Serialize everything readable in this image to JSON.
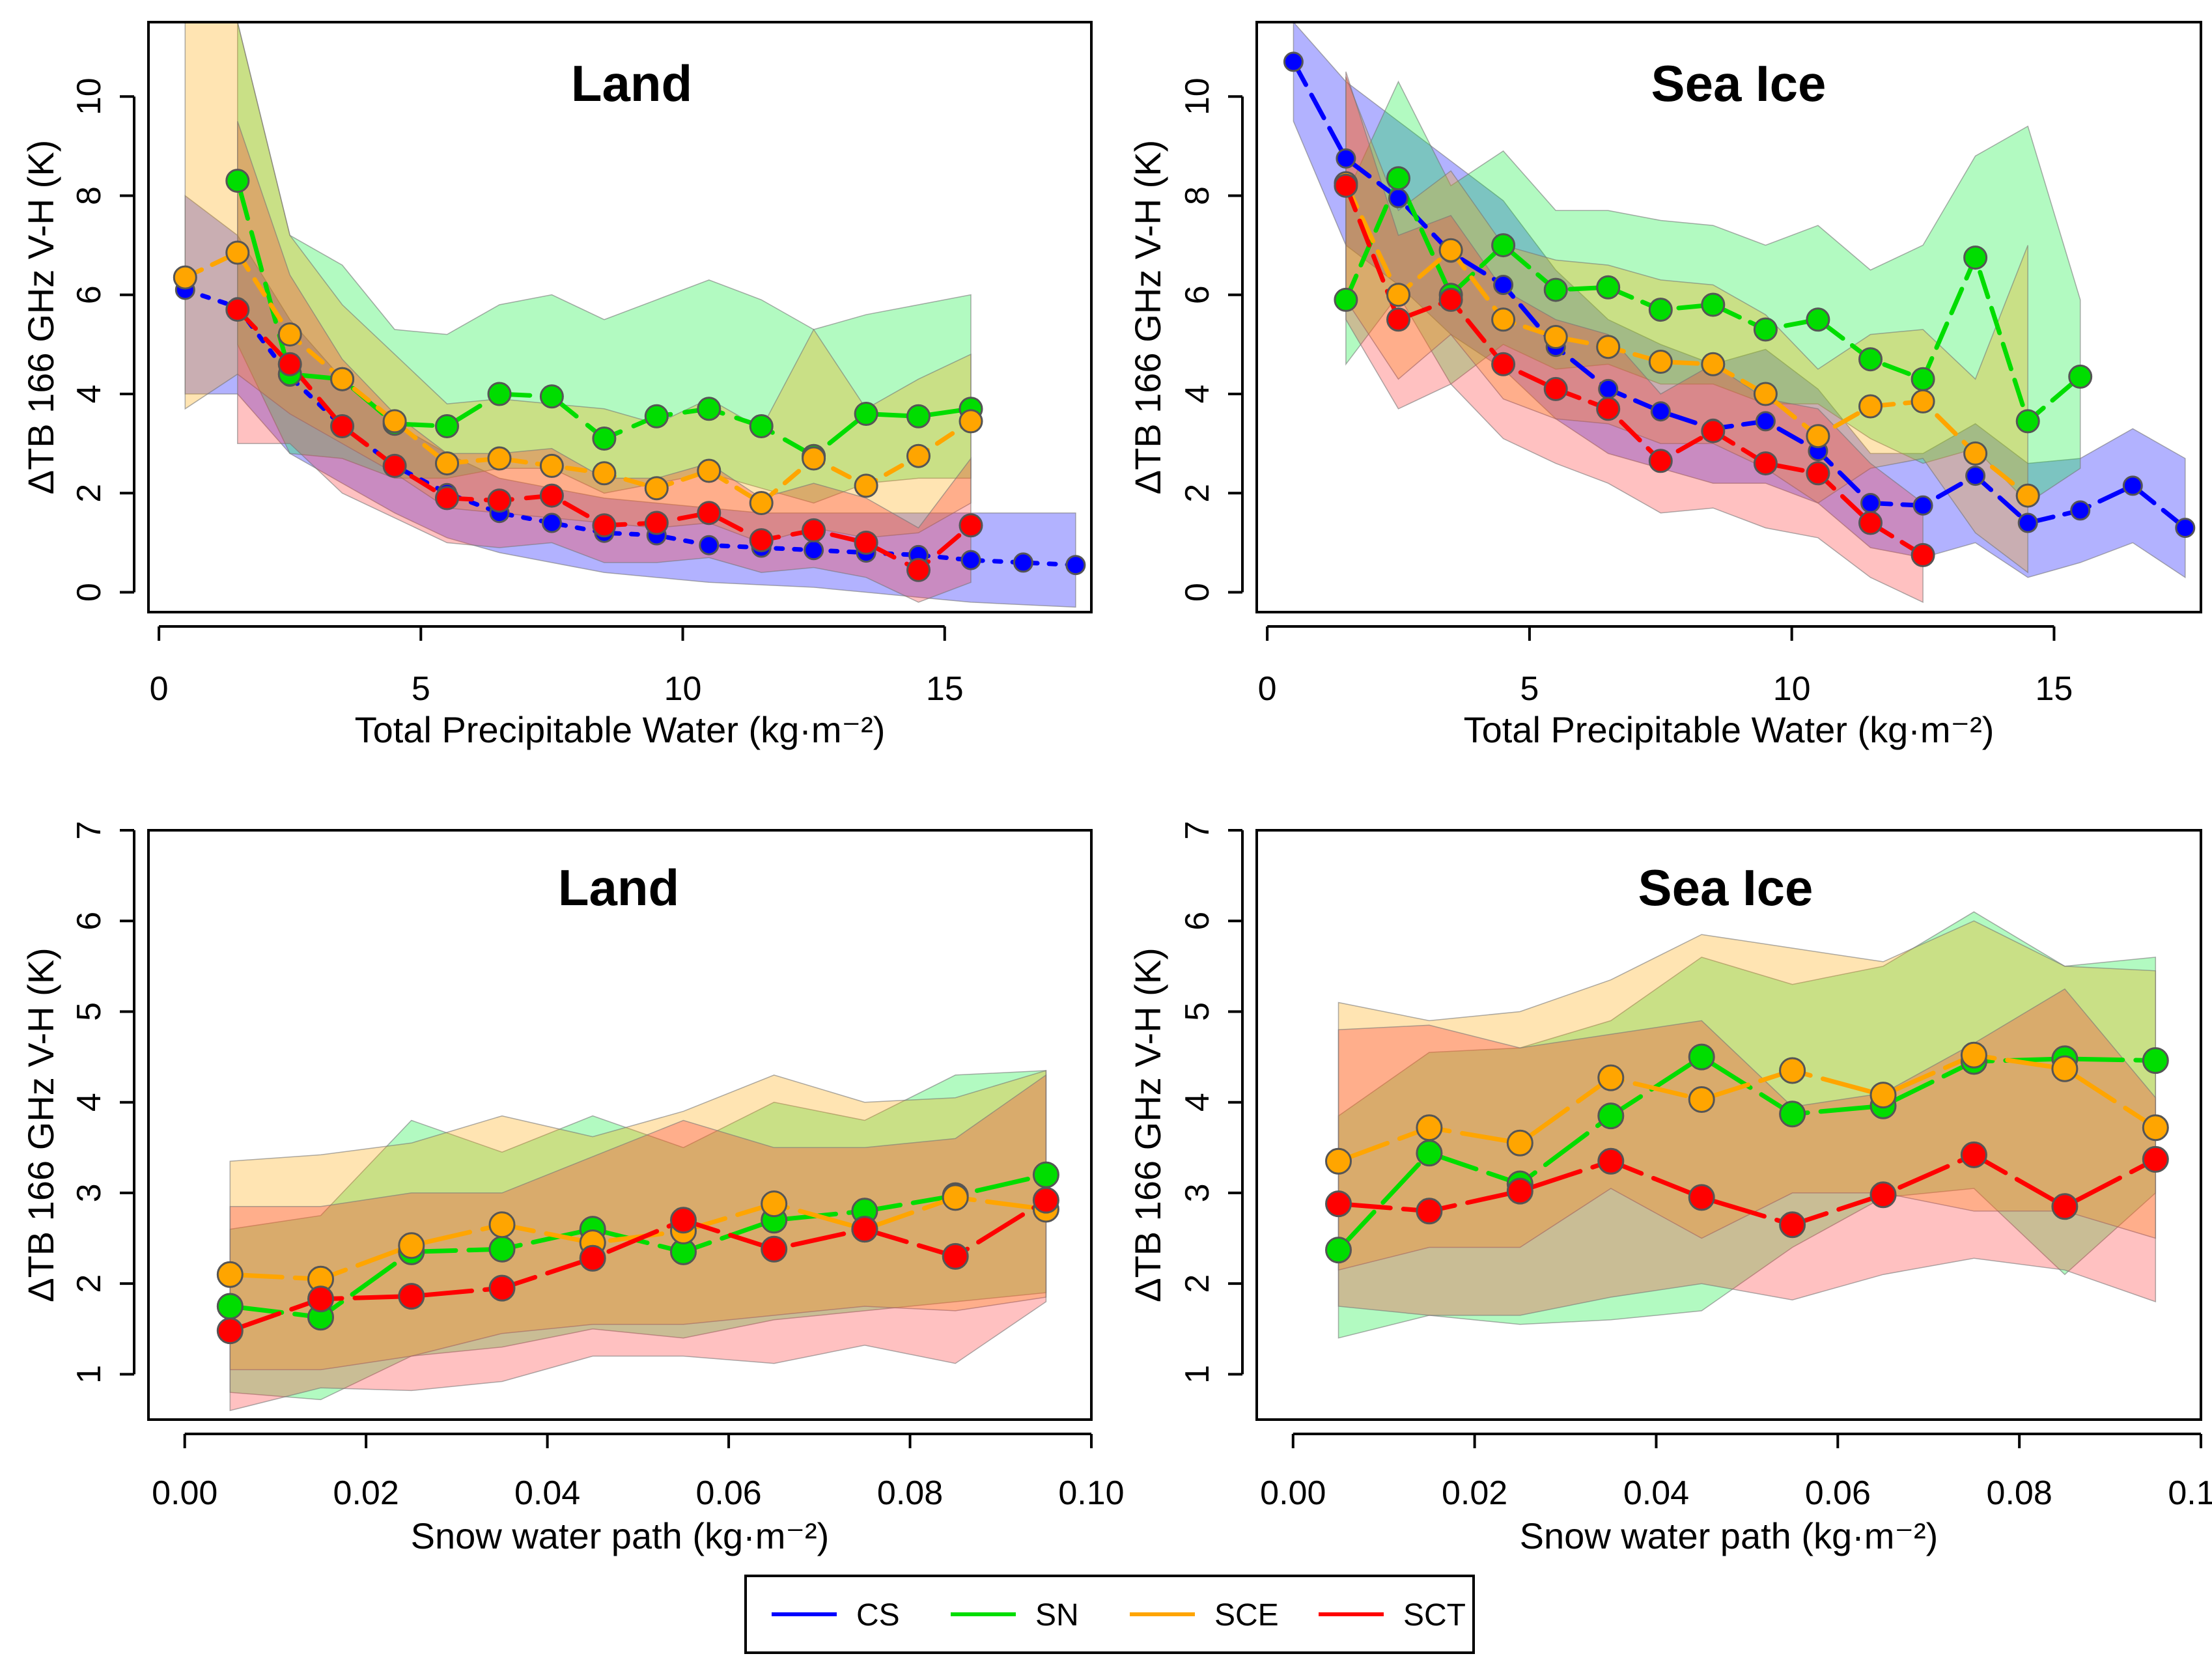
{
  "legend": [
    {
      "key": "CS",
      "label": "CS",
      "color": "#0000ff"
    },
    {
      "key": "SN",
      "label": "SN",
      "color": "#00dd00"
    },
    {
      "key": "SCE",
      "label": "SCE",
      "color": "#ffa500"
    },
    {
      "key": "SCT",
      "label": "SCT",
      "color": "#ff0000"
    }
  ],
  "colors": {
    "CS": "#0000ff",
    "SN": "#00dd00",
    "SCE": "#ffa500",
    "SCT": "#ff0000",
    "CS_fill": "#0000ff",
    "SN_fill": "#00ee33",
    "SCE_fill": "#ffa500",
    "SCT_fill": "#ff3333"
  },
  "chart_data": [
    {
      "id": "tpw-land",
      "type": "line",
      "title": "Land",
      "xlabel": "Total Precipitable Water (kg·m⁻²)",
      "ylabel": "ΔTB 166 GHz V-H (K)",
      "xlim": [
        -0.2,
        17.8
      ],
      "ylim": [
        -0.4,
        11.5
      ],
      "xticks": [
        0,
        5,
        10,
        15
      ],
      "xtick_labels": [
        "0",
        "5",
        "10",
        "15"
      ],
      "yticks": [
        0,
        2,
        4,
        6,
        8,
        10
      ],
      "ytick_labels": [
        "0",
        "2",
        "4",
        "6",
        "8",
        "10"
      ],
      "series": [
        {
          "name": "CS",
          "x": [
            0.5,
            1.5,
            2.5,
            3.5,
            4.5,
            5.5,
            6.5,
            7.5,
            8.5,
            9.5,
            10.5,
            11.5,
            12.5,
            13.5,
            14.5,
            15.5,
            16.5,
            17.5
          ],
          "y": [
            6.1,
            5.75,
            4.35,
            3.35,
            2.55,
            2.0,
            1.6,
            1.4,
            1.2,
            1.15,
            0.95,
            0.9,
            0.85,
            0.8,
            0.75,
            0.65,
            0.6,
            0.55
          ],
          "lower": [
            4.0,
            4.0,
            2.8,
            2.2,
            1.6,
            1.1,
            0.8,
            0.6,
            0.4,
            0.3,
            0.2,
            0.15,
            0.1,
            0.0,
            -0.1,
            -0.2,
            -0.25,
            -0.3
          ],
          "upper": [
            8.0,
            7.2,
            5.5,
            4.3,
            3.4,
            2.8,
            2.3,
            2.1,
            1.9,
            1.8,
            1.7,
            1.6,
            1.6,
            1.6,
            1.6,
            1.6,
            1.6,
            1.6
          ]
        },
        {
          "name": "SN",
          "x": [
            1.5,
            2.5,
            3.5,
            4.5,
            5.5,
            6.5,
            7.5,
            8.5,
            9.5,
            10.5,
            11.5,
            12.5,
            13.5,
            14.5,
            15.5
          ],
          "y": [
            8.3,
            4.4,
            4.3,
            3.4,
            3.35,
            4.0,
            3.95,
            3.1,
            3.55,
            3.7,
            3.35,
            2.75,
            3.6,
            3.55,
            3.7
          ],
          "lower": [
            5.0,
            2.8,
            2.7,
            2.3,
            2.3,
            2.5,
            2.5,
            2.0,
            2.2,
            2.4,
            2.1,
            1.8,
            2.2,
            2.3,
            2.3
          ],
          "upper": [
            11.5,
            7.2,
            6.6,
            5.3,
            5.2,
            5.8,
            6.0,
            5.5,
            5.9,
            6.3,
            5.9,
            5.3,
            5.6,
            5.8,
            6.0
          ]
        },
        {
          "name": "SCE",
          "x": [
            0.5,
            1.5,
            2.5,
            3.5,
            4.5,
            5.5,
            6.5,
            7.5,
            8.5,
            9.5,
            10.5,
            11.5,
            12.5,
            13.5,
            14.5,
            15.5
          ],
          "y": [
            6.35,
            6.85,
            5.2,
            4.3,
            3.45,
            2.6,
            2.7,
            2.55,
            2.4,
            2.1,
            2.45,
            1.8,
            2.7,
            2.15,
            2.75,
            3.45
          ],
          "lower": [
            3.7,
            4.4,
            3.6,
            3.0,
            2.4,
            1.7,
            1.6,
            1.5,
            1.4,
            1.3,
            1.4,
            1.0,
            1.3,
            1.1,
            1.2,
            1.8
          ],
          "upper": [
            11.5,
            11.5,
            7.2,
            5.8,
            4.8,
            3.8,
            3.9,
            3.8,
            3.7,
            3.4,
            3.9,
            3.3,
            5.3,
            3.7,
            4.3,
            4.8
          ]
        },
        {
          "name": "SCT",
          "x": [
            1.5,
            2.5,
            3.5,
            4.5,
            5.5,
            6.5,
            7.5,
            8.5,
            9.5,
            10.5,
            11.5,
            12.5,
            13.5,
            14.5,
            15.5
          ],
          "y": [
            5.7,
            4.6,
            3.35,
            2.55,
            1.9,
            1.85,
            1.95,
            1.35,
            1.4,
            1.6,
            1.05,
            1.25,
            1.0,
            0.45,
            1.35
          ],
          "lower": [
            3.0,
            3.0,
            2.0,
            1.5,
            1.0,
            0.9,
            1.0,
            0.6,
            0.6,
            0.7,
            0.4,
            0.5,
            0.3,
            -0.2,
            0.2
          ],
          "upper": [
            9.5,
            6.4,
            4.7,
            3.6,
            2.8,
            2.8,
            2.9,
            2.3,
            2.3,
            2.6,
            1.9,
            2.2,
            1.9,
            1.3,
            2.7
          ]
        }
      ]
    },
    {
      "id": "tpw-seaice",
      "type": "line",
      "title": "Sea Ice",
      "xlabel": "Total Precipitable Water (kg·m⁻²)",
      "ylabel": "ΔTB 166 GHz V-H (K)",
      "xlim": [
        -0.2,
        17.8
      ],
      "ylim": [
        -0.4,
        11.5
      ],
      "xticks": [
        0,
        5,
        10,
        15
      ],
      "xtick_labels": [
        "0",
        "5",
        "10",
        "15"
      ],
      "yticks": [
        0,
        2,
        4,
        6,
        8,
        10
      ],
      "ytick_labels": [
        "0",
        "2",
        "4",
        "6",
        "8",
        "10"
      ],
      "series": [
        {
          "name": "CS",
          "x": [
            0.5,
            1.5,
            2.5,
            3.5,
            4.5,
            5.5,
            6.5,
            7.5,
            8.5,
            9.5,
            10.5,
            11.5,
            12.5,
            13.5,
            14.5,
            15.5,
            16.5,
            17.5
          ],
          "y": [
            10.7,
            8.75,
            7.95,
            6.85,
            6.2,
            4.95,
            4.1,
            3.65,
            3.3,
            3.45,
            2.85,
            1.8,
            1.75,
            2.35,
            1.4,
            1.65,
            2.15,
            1.3
          ],
          "lower": [
            9.5,
            7.0,
            6.2,
            5.2,
            4.5,
            3.5,
            2.8,
            2.5,
            2.2,
            2.2,
            1.8,
            0.9,
            0.7,
            1.0,
            0.3,
            0.6,
            1.0,
            0.3
          ],
          "upper": [
            11.5,
            10.3,
            9.5,
            8.7,
            7.9,
            6.5,
            5.5,
            5.0,
            4.6,
            4.9,
            4.1,
            2.8,
            2.8,
            3.4,
            2.6,
            2.7,
            3.3,
            2.7
          ]
        },
        {
          "name": "SN",
          "x": [
            1.5,
            2.5,
            3.5,
            4.5,
            5.5,
            6.5,
            7.5,
            8.5,
            9.5,
            10.5,
            11.5,
            12.5,
            13.5,
            14.5,
            15.5
          ],
          "y": [
            5.9,
            8.35,
            6.0,
            7.0,
            6.1,
            6.15,
            5.7,
            5.8,
            5.3,
            5.5,
            4.7,
            4.3,
            6.75,
            3.45,
            4.35
          ],
          "lower": [
            4.6,
            6.0,
            4.2,
            5.0,
            4.5,
            4.6,
            4.2,
            4.2,
            3.8,
            3.8,
            3.1,
            2.6,
            2.9,
            1.8,
            2.5
          ],
          "upper": [
            8.0,
            10.3,
            8.2,
            8.9,
            7.7,
            7.7,
            7.5,
            7.4,
            7.0,
            7.4,
            6.5,
            7.0,
            8.8,
            9.4,
            5.9
          ]
        },
        {
          "name": "SCE",
          "x": [
            1.5,
            2.5,
            3.5,
            4.5,
            5.5,
            6.5,
            7.5,
            8.5,
            9.5,
            10.5,
            11.5,
            12.5,
            13.5,
            14.5
          ],
          "y": [
            8.25,
            6.0,
            6.9,
            5.5,
            5.15,
            4.95,
            4.65,
            4.6,
            4.0,
            3.15,
            3.75,
            3.85,
            2.8,
            1.95
          ],
          "lower": [
            5.9,
            4.3,
            5.2,
            3.9,
            3.5,
            3.4,
            3.0,
            3.0,
            2.5,
            1.8,
            2.5,
            2.7,
            1.2,
            0.4
          ],
          "upper": [
            10.4,
            7.7,
            8.5,
            7.0,
            6.7,
            6.6,
            6.3,
            6.2,
            5.6,
            4.5,
            5.2,
            5.3,
            4.3,
            7.0
          ]
        },
        {
          "name": "SCT",
          "x": [
            1.5,
            2.5,
            3.5,
            4.5,
            5.5,
            6.5,
            7.5,
            8.5,
            9.5,
            10.5,
            11.5,
            12.5
          ],
          "y": [
            8.2,
            5.5,
            5.9,
            4.6,
            4.1,
            3.7,
            2.65,
            3.25,
            2.6,
            2.4,
            1.4,
            0.75
          ],
          "lower": [
            5.5,
            3.7,
            4.2,
            3.1,
            2.6,
            2.2,
            1.6,
            1.7,
            1.3,
            1.1,
            0.3,
            -0.2
          ],
          "upper": [
            10.5,
            7.2,
            7.6,
            6.1,
            5.5,
            5.2,
            4.0,
            4.6,
            3.9,
            3.7,
            2.6,
            1.8
          ]
        }
      ]
    },
    {
      "id": "swp-land",
      "type": "line",
      "title": "Land",
      "xlabel": "Snow water path (kg·m⁻²)",
      "ylabel": "ΔTB 166 GHz V-H (K)",
      "xlim": [
        -0.004,
        0.1
      ],
      "ylim": [
        0.5,
        7.0
      ],
      "xticks": [
        0.0,
        0.02,
        0.04,
        0.06,
        0.08,
        0.1
      ],
      "xtick_labels": [
        "0.00",
        "0.02",
        "0.04",
        "0.06",
        "0.08",
        "0.10"
      ],
      "yticks": [
        1,
        2,
        3,
        4,
        5,
        6,
        7
      ],
      "ytick_labels": [
        "1",
        "2",
        "3",
        "4",
        "5",
        "6",
        "7"
      ],
      "series": [
        {
          "name": "SN",
          "x": [
            0.005,
            0.015,
            0.025,
            0.035,
            0.045,
            0.055,
            0.065,
            0.075,
            0.085,
            0.095
          ],
          "y": [
            1.75,
            1.63,
            2.35,
            2.38,
            2.6,
            2.35,
            2.7,
            2.8,
            2.97,
            3.2
          ],
          "lower": [
            0.8,
            0.72,
            1.2,
            1.3,
            1.5,
            1.4,
            1.6,
            1.7,
            1.8,
            1.9
          ],
          "upper": [
            2.6,
            2.75,
            3.8,
            3.45,
            3.85,
            3.5,
            4.0,
            3.8,
            4.3,
            4.35
          ]
        },
        {
          "name": "SCE",
          "x": [
            0.005,
            0.015,
            0.025,
            0.035,
            0.045,
            0.055,
            0.065,
            0.075,
            0.085,
            0.095
          ],
          "y": [
            2.1,
            2.05,
            2.42,
            2.65,
            2.45,
            2.58,
            2.88,
            2.6,
            2.95,
            2.82
          ],
          "lower": [
            1.05,
            1.05,
            1.2,
            1.45,
            1.55,
            1.55,
            1.65,
            1.75,
            1.7,
            1.85
          ],
          "upper": [
            3.35,
            3.42,
            3.55,
            3.85,
            3.62,
            3.9,
            4.3,
            4.0,
            4.05,
            4.35
          ]
        },
        {
          "name": "SCT",
          "x": [
            0.005,
            0.015,
            0.025,
            0.035,
            0.045,
            0.055,
            0.065,
            0.075,
            0.085,
            0.095
          ],
          "y": [
            1.48,
            1.83,
            1.86,
            1.95,
            2.28,
            2.7,
            2.38,
            2.6,
            2.3,
            2.92
          ],
          "lower": [
            0.6,
            0.85,
            0.82,
            0.92,
            1.2,
            1.2,
            1.12,
            1.32,
            1.12,
            1.8
          ],
          "upper": [
            2.85,
            2.85,
            3.0,
            3.0,
            3.4,
            3.8,
            3.5,
            3.5,
            3.6,
            4.3
          ]
        }
      ]
    },
    {
      "id": "swp-seaice",
      "type": "line",
      "title": "Sea Ice",
      "xlabel": "Snow water path (kg·m⁻²)",
      "ylabel": "ΔTB 166 GHz V-H (K)",
      "xlim": [
        -0.004,
        0.1
      ],
      "ylim": [
        0.5,
        7.0
      ],
      "xticks": [
        0.0,
        0.02,
        0.04,
        0.06,
        0.08,
        0.1
      ],
      "xtick_labels": [
        "0.00",
        "0.02",
        "0.04",
        "0.06",
        "0.08",
        "0.10"
      ],
      "yticks": [
        1,
        2,
        3,
        4,
        5,
        6,
        7
      ],
      "ytick_labels": [
        "1",
        "2",
        "3",
        "4",
        "5",
        "6",
        "7"
      ],
      "series": [
        {
          "name": "SN",
          "x": [
            0.005,
            0.015,
            0.025,
            0.035,
            0.045,
            0.055,
            0.065,
            0.075,
            0.085,
            0.095
          ],
          "y": [
            2.37,
            3.44,
            3.1,
            3.85,
            4.5,
            3.87,
            3.96,
            4.45,
            4.48,
            4.46
          ],
          "lower": [
            1.4,
            1.65,
            1.55,
            1.6,
            1.7,
            2.4,
            2.95,
            3.05,
            2.1,
            3.0
          ],
          "upper": [
            3.85,
            4.55,
            4.6,
            4.9,
            5.6,
            5.3,
            5.5,
            6.1,
            5.5,
            5.6
          ]
        },
        {
          "name": "SCE",
          "x": [
            0.005,
            0.015,
            0.025,
            0.035,
            0.045,
            0.055,
            0.065,
            0.075,
            0.085,
            0.095
          ],
          "y": [
            3.35,
            3.72,
            3.55,
            4.27,
            4.03,
            4.35,
            4.08,
            4.52,
            4.37,
            3.72
          ],
          "lower": [
            2.15,
            2.4,
            2.4,
            3.05,
            2.5,
            3.0,
            3.0,
            2.8,
            2.8,
            2.5
          ],
          "upper": [
            5.1,
            4.9,
            5.0,
            5.35,
            5.85,
            5.7,
            5.55,
            6.0,
            5.5,
            5.45
          ]
        },
        {
          "name": "SCT",
          "x": [
            0.005,
            0.015,
            0.025,
            0.035,
            0.045,
            0.055,
            0.065,
            0.075,
            0.085,
            0.095
          ],
          "y": [
            2.88,
            2.8,
            3.02,
            3.35,
            2.95,
            2.65,
            2.98,
            3.42,
            2.85,
            3.37
          ],
          "lower": [
            1.75,
            1.65,
            1.65,
            1.85,
            2.0,
            1.82,
            2.1,
            2.28,
            2.15,
            1.8
          ],
          "upper": [
            4.8,
            4.85,
            4.6,
            4.75,
            4.9,
            3.95,
            4.1,
            4.65,
            5.25,
            4.05
          ]
        }
      ]
    }
  ]
}
